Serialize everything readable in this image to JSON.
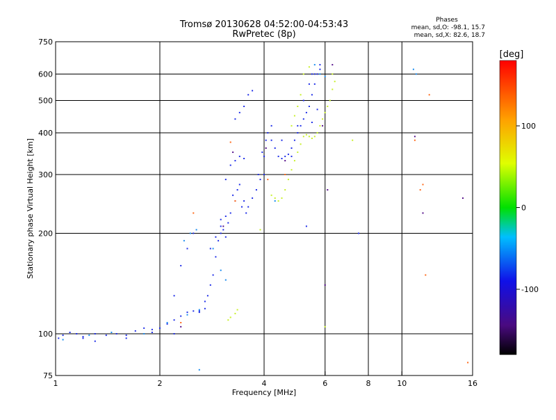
{
  "chart_data": {
    "type": "scatter",
    "title": "Tromsø 20130628 04:52:00-04:53:43",
    "subtitle": "RwPretec (8p)",
    "xlabel": "Frequency [MHz]",
    "ylabel": "Stationary phase Virtual Height [km]",
    "x_scale": "log",
    "y_scale": "log",
    "xlim": [
      1,
      16
    ],
    "ylim": [
      75,
      750
    ],
    "x_ticks": [
      1,
      2,
      4,
      6,
      8,
      10,
      16
    ],
    "y_ticks": [
      75,
      100,
      200,
      300,
      400,
      500,
      600,
      750
    ],
    "x_grid": [
      2,
      4,
      6,
      8,
      10
    ],
    "y_grid": [
      100,
      200,
      300,
      400,
      500,
      600
    ],
    "grid": true,
    "phase_info": {
      "heading": "Phases",
      "line_o": "mean, sd,O: -98.1, 15.7",
      "line_x": "mean, sd,X:  82.6, 18.7"
    },
    "colorbar": {
      "label": "[deg]",
      "range": [
        -180,
        180
      ],
      "ticks": [
        100,
        0,
        -100
      ],
      "placement": "right"
    },
    "series": [
      {
        "phase": -100,
        "color": "#1f2ee8",
        "points": [
          [
            1.02,
            97
          ],
          [
            1.05,
            99
          ],
          [
            1.1,
            101
          ],
          [
            1.15,
            100
          ],
          [
            1.2,
            98
          ],
          [
            1.3,
            100
          ],
          [
            1.4,
            99
          ],
          [
            1.5,
            100
          ],
          [
            1.6,
            99
          ],
          [
            1.7,
            102
          ],
          [
            1.8,
            104
          ],
          [
            1.9,
            103
          ],
          [
            2.0,
            104
          ],
          [
            2.1,
            107
          ],
          [
            2.2,
            110
          ],
          [
            2.3,
            113
          ],
          [
            2.4,
            116
          ],
          [
            2.5,
            117
          ],
          [
            2.6,
            117
          ],
          [
            2.7,
            119
          ],
          [
            2.75,
            130
          ],
          [
            2.8,
            140
          ],
          [
            2.85,
            150
          ],
          [
            2.9,
            170
          ],
          [
            2.95,
            190
          ],
          [
            3.0,
            200
          ],
          [
            3.05,
            205
          ],
          [
            3.1,
            195
          ],
          [
            3.15,
            215
          ],
          [
            3.2,
            230
          ],
          [
            3.3,
            250
          ],
          [
            3.35,
            270
          ],
          [
            3.4,
            280
          ],
          [
            3.5,
            250
          ],
          [
            3.6,
            240
          ],
          [
            3.7,
            255
          ],
          [
            3.8,
            270
          ],
          [
            3.9,
            290
          ],
          [
            4.0,
            300
          ],
          [
            3.95,
            350
          ],
          [
            4.05,
            380
          ],
          [
            4.1,
            400
          ],
          [
            4.2,
            380
          ],
          [
            4.3,
            360
          ],
          [
            4.4,
            340
          ],
          [
            4.5,
            335
          ],
          [
            4.6,
            340
          ],
          [
            4.7,
            345
          ],
          [
            4.8,
            360
          ],
          [
            4.9,
            380
          ],
          [
            5.0,
            400
          ],
          [
            5.1,
            420
          ],
          [
            5.2,
            440
          ],
          [
            5.3,
            460
          ],
          [
            5.4,
            480
          ],
          [
            5.5,
            520
          ],
          [
            5.6,
            560
          ],
          [
            5.7,
            600
          ],
          [
            5.8,
            620
          ],
          [
            3.3,
            440
          ],
          [
            3.4,
            460
          ],
          [
            3.5,
            480
          ],
          [
            3.6,
            520
          ],
          [
            3.7,
            535
          ],
          [
            3.3,
            330
          ],
          [
            3.4,
            340
          ],
          [
            3.5,
            335
          ],
          [
            3.2,
            320
          ],
          [
            3.0,
            220
          ],
          [
            3.1,
            225
          ],
          [
            2.5,
            200
          ],
          [
            2.3,
            160
          ],
          [
            2.2,
            130
          ],
          [
            2.4,
            180
          ],
          [
            2.2,
            100
          ],
          [
            1.9,
            101
          ],
          [
            1.6,
            97
          ],
          [
            1.3,
            95
          ],
          [
            1.2,
            97
          ],
          [
            4.5,
            380
          ],
          [
            4.8,
            340
          ],
          [
            5.0,
            420
          ],
          [
            5.2,
            500
          ],
          [
            5.4,
            560
          ],
          [
            5.6,
            600
          ],
          [
            5.5,
            430
          ],
          [
            5.7,
            470
          ],
          [
            4.2,
            420
          ],
          [
            4.0,
            340
          ],
          [
            3.85,
            300
          ],
          [
            3.55,
            230
          ],
          [
            3.45,
            240
          ],
          [
            3.25,
            260
          ],
          [
            3.1,
            290
          ],
          [
            3.0,
            210
          ],
          [
            2.9,
            195
          ],
          [
            2.8,
            180
          ],
          [
            2.7,
            125
          ],
          [
            2.6,
            116
          ],
          [
            5.3,
            210
          ],
          [
            7.5,
            200
          ],
          [
            5.8,
            640
          ],
          [
            5.5,
            600
          ]
        ]
      },
      {
        "phase": -80,
        "color": "#1a8cf0",
        "points": [
          [
            1.05,
            96
          ],
          [
            1.25,
            99
          ],
          [
            1.45,
            101
          ],
          [
            1.8,
            100
          ],
          [
            2.1,
            108
          ],
          [
            2.4,
            114
          ],
          [
            2.6,
            118
          ],
          [
            2.55,
            205
          ],
          [
            2.45,
            200
          ],
          [
            2.35,
            190
          ],
          [
            2.85,
            180
          ],
          [
            3.0,
            155
          ],
          [
            3.1,
            145
          ],
          [
            4.3,
            250
          ],
          [
            5.6,
            640
          ],
          [
            5.8,
            600
          ],
          [
            6.0,
            590
          ],
          [
            2.6,
            78
          ],
          [
            10.8,
            620
          ],
          [
            11.0,
            600
          ]
        ]
      },
      {
        "phase": 90,
        "color": "#c8f02a",
        "points": [
          [
            4.2,
            260
          ],
          [
            4.3,
            255
          ],
          [
            4.4,
            250
          ],
          [
            4.5,
            255
          ],
          [
            4.6,
            270
          ],
          [
            4.7,
            290
          ],
          [
            4.8,
            310
          ],
          [
            4.9,
            330
          ],
          [
            5.0,
            350
          ],
          [
            5.1,
            370
          ],
          [
            5.2,
            390
          ],
          [
            5.3,
            395
          ],
          [
            5.4,
            390
          ],
          [
            5.5,
            385
          ],
          [
            5.6,
            390
          ],
          [
            5.7,
            400
          ],
          [
            5.8,
            420
          ],
          [
            5.9,
            440
          ],
          [
            6.0,
            460
          ],
          [
            6.1,
            480
          ],
          [
            6.2,
            500
          ],
          [
            6.3,
            540
          ],
          [
            6.4,
            570
          ],
          [
            5.2,
            600
          ],
          [
            5.4,
            630
          ],
          [
            5.1,
            520
          ],
          [
            5.0,
            480
          ],
          [
            4.9,
            450
          ],
          [
            4.8,
            420
          ],
          [
            6.3,
            600
          ],
          [
            3.2,
            112
          ],
          [
            3.3,
            115
          ],
          [
            3.35,
            118
          ],
          [
            3.15,
            110
          ],
          [
            3.9,
            205
          ],
          [
            6.0,
            105
          ],
          [
            7.2,
            380
          ]
        ]
      },
      {
        "phase": 140,
        "color": "#ff6a1a",
        "points": [
          [
            2.5,
            230
          ],
          [
            3.2,
            375
          ],
          [
            3.3,
            250
          ],
          [
            4.1,
            290
          ],
          [
            10.9,
            380
          ],
          [
            11.5,
            280
          ],
          [
            12.0,
            520
          ],
          [
            11.7,
            150
          ],
          [
            15.5,
            82
          ],
          [
            2.3,
            108
          ],
          [
            4.6,
            300
          ],
          [
            11.3,
            270
          ]
        ]
      },
      {
        "phase": -150,
        "color": "#55108a",
        "points": [
          [
            3.05,
            210
          ],
          [
            3.25,
            350
          ],
          [
            4.05,
            360
          ],
          [
            4.6,
            330
          ],
          [
            5.9,
            420
          ],
          [
            6.1,
            270
          ],
          [
            6.3,
            640
          ],
          [
            10.9,
            390
          ],
          [
            11.5,
            230
          ],
          [
            15.0,
            255
          ],
          [
            6.0,
            140
          ],
          [
            2.3,
            105
          ]
        ]
      }
    ]
  }
}
